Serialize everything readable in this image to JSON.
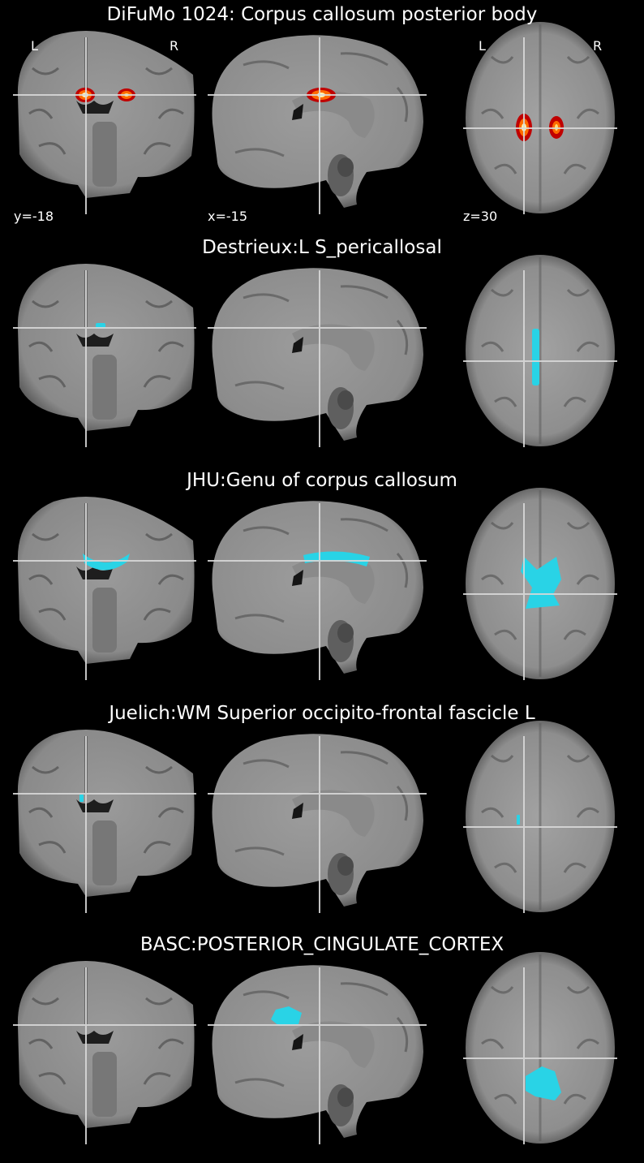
{
  "colors": {
    "background": "#000000",
    "overlay": "#29d3e6",
    "crosshair": "#d8d8d8"
  },
  "panels": [
    {
      "title": "DiFuMo 1024: Corpus callosum posterior body",
      "overlay": "heat",
      "orientation_labels": {
        "left": "L",
        "right": "R"
      },
      "coords": {
        "coronal": "y=-18",
        "sagittal": "x=-15",
        "axial": "z=30"
      }
    },
    {
      "title": "Destrieux:L S_pericallosal",
      "overlay": "cyan"
    },
    {
      "title": "JHU:Genu of corpus callosum",
      "overlay": "cyan"
    },
    {
      "title": "Juelich:WM Superior occipito-frontal fascicle L",
      "overlay": "cyan"
    },
    {
      "title": "BASC:POSTERIOR_CINGULATE_CORTEX",
      "overlay": "cyan"
    }
  ]
}
